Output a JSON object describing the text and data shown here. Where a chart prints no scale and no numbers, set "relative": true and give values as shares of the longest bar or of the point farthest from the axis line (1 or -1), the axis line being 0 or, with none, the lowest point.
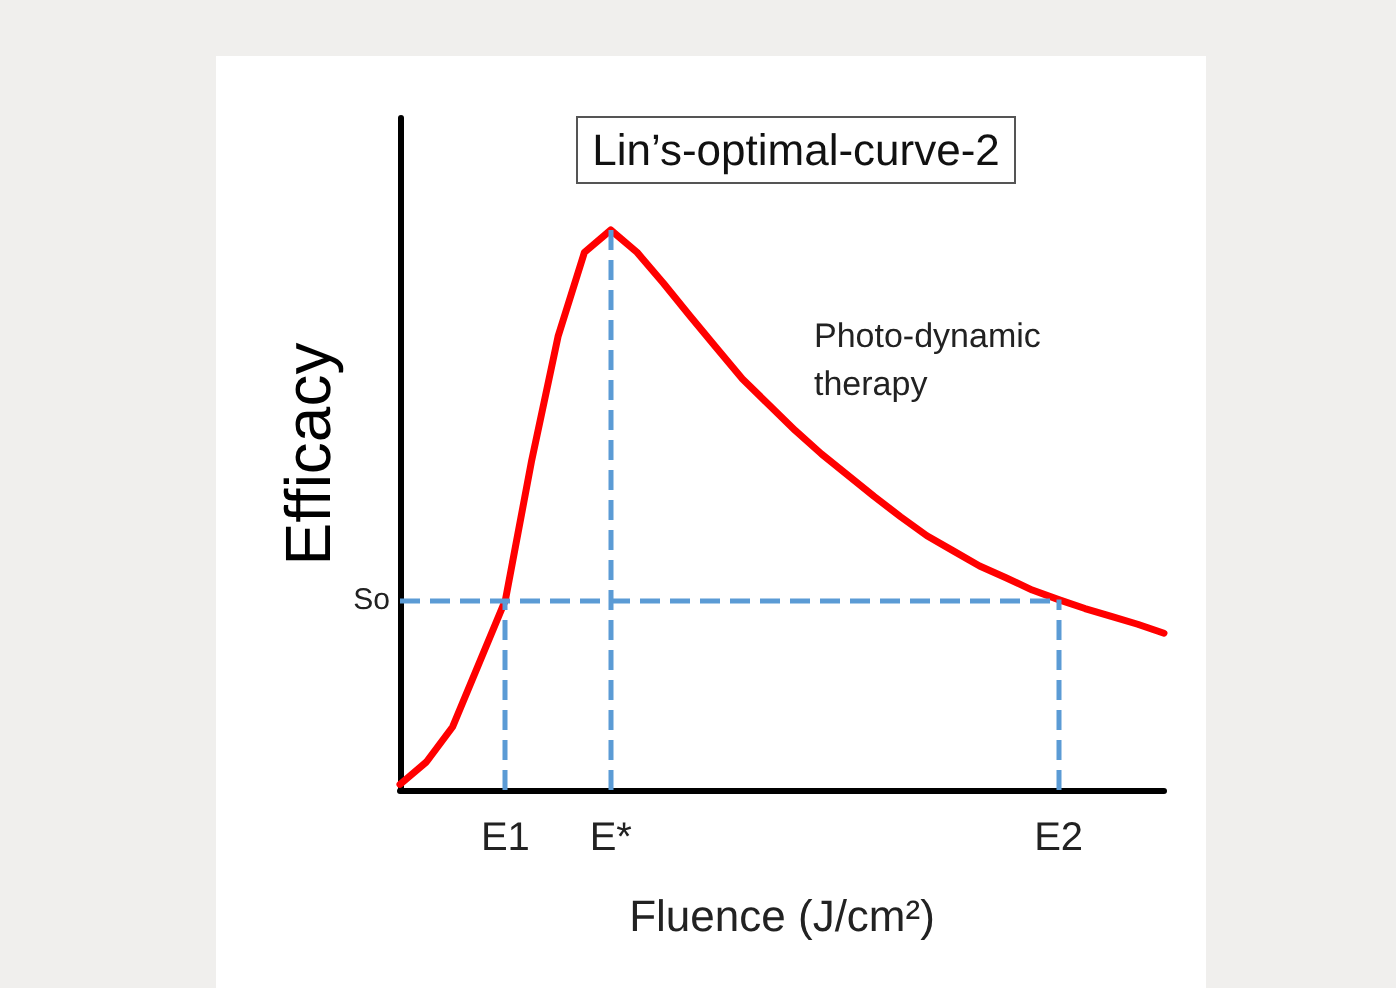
{
  "chart_data": {
    "type": "line",
    "title": "Lin’s-optimal-curve-2",
    "xlabel": "Fluence (J/cm²)",
    "ylabel": "Efficacy",
    "relative": true,
    "annotations": [
      "Photo-dynamic\ntherapy"
    ],
    "categories": [
      null,
      null,
      null,
      null,
      "E1",
      null,
      null,
      null,
      "E*",
      null,
      null,
      null,
      null,
      null,
      null,
      null,
      null,
      null,
      null,
      null,
      null,
      null,
      null,
      null,
      null,
      "E2",
      null,
      null,
      null,
      null
    ],
    "series": [
      {
        "color": "#ff0000",
        "values": [
          0.01,
          0.05,
          0.113,
          0.226,
          0.339,
          0.589,
          0.81,
          0.96,
          1,
          0.96,
          0.905,
          0.847,
          0.79,
          0.734,
          0.688,
          0.642,
          0.6,
          0.562,
          0.524,
          0.488,
          0.454,
          0.427,
          0.4,
          0.379,
          0.357,
          0.34,
          0.324,
          0.31,
          0.296,
          0.28
        ]
      }
    ],
    "ref_lines": [
      {
        "axis": "y",
        "value": 0.34,
        "label": "So",
        "color": "#5b9bd5",
        "line_style": "dashed"
      },
      {
        "axis": "x",
        "value": "E1",
        "label": null,
        "color": "#5b9bd5",
        "line_style": "dashed"
      },
      {
        "axis": "x",
        "value": "E*",
        "label": null,
        "color": "#5b9bd5",
        "line_style": "dashed"
      },
      {
        "axis": "x",
        "value": "E2",
        "label": null,
        "color": "#5b9bd5",
        "line_style": "dashed"
      }
    ],
    "grid": false,
    "marker": "none",
    "line_style": "solid"
  }
}
